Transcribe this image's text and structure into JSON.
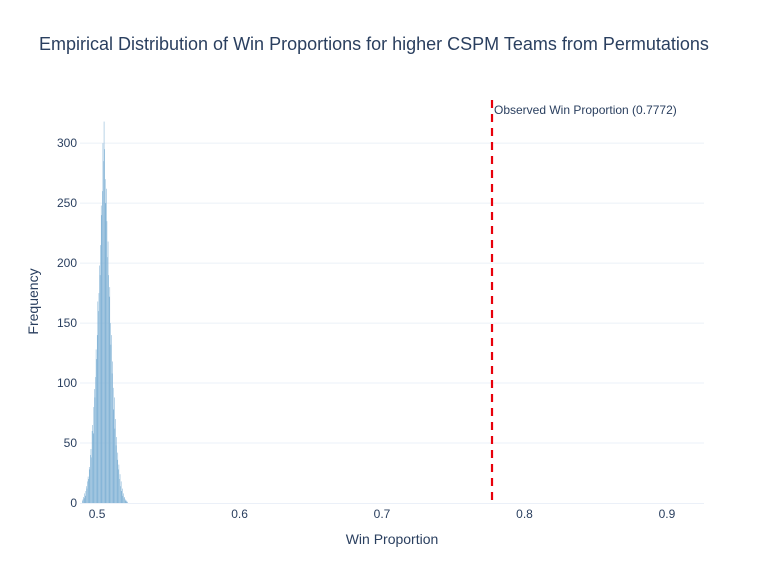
{
  "chart_data": {
    "type": "histogram",
    "title": "Empirical Distribution of Win Proportions for higher CSPM Teams from Permutations",
    "xlabel": "Win Proportion",
    "ylabel": "Frequency",
    "xlim": [
      0.488,
      0.926
    ],
    "ylim": [
      0,
      336
    ],
    "x_ticks": [
      0.5,
      0.6,
      0.7,
      0.8,
      0.9
    ],
    "x_tick_labels": [
      "0.5",
      "0.6",
      "0.7",
      "0.8",
      "0.9"
    ],
    "y_ticks": [
      0,
      50,
      100,
      150,
      200,
      250,
      300
    ],
    "y_tick_labels": [
      "0",
      "50",
      "100",
      "150",
      "200",
      "250",
      "300"
    ],
    "grid": "horizontal",
    "bar_color": "#7fb1d5",
    "bins": {
      "start": 0.4895,
      "width": 0.0004,
      "counts": [
        2,
        3,
        5,
        4,
        8,
        6,
        10,
        14,
        12,
        18,
        22,
        20,
        30,
        28,
        40,
        45,
        38,
        60,
        65,
        58,
        80,
        95,
        88,
        105,
        128,
        120,
        140,
        168,
        160,
        175,
        198,
        190,
        215,
        248,
        240,
        260,
        300,
        285,
        318,
        295,
        270,
        250,
        262,
        235,
        205,
        218,
        190,
        172,
        180,
        150,
        132,
        140,
        108,
        118,
        96,
        78,
        88,
        62,
        70,
        48,
        55,
        36,
        42,
        28,
        32,
        20,
        24,
        14,
        18,
        10,
        12,
        6,
        8,
        4,
        5,
        3,
        2,
        2,
        1,
        1
      ]
    },
    "reference_line": {
      "x": 0.7772,
      "color": "#e8000b",
      "label": "Observed Win Proportion (0.7772)"
    }
  }
}
